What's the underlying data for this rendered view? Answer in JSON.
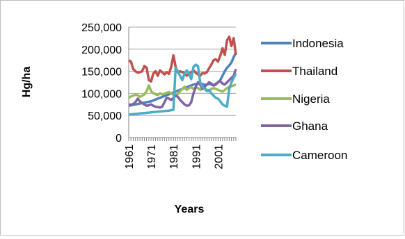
{
  "chart_data": {
    "type": "line",
    "title": "",
    "xlabel": "Years",
    "ylabel": "Hg/ha",
    "ylim": [
      0,
      250000
    ],
    "yticks": [
      0,
      50000,
      100000,
      150000,
      200000,
      250000
    ],
    "ytick_labels": [
      "0",
      "50,000",
      "100,000",
      "150,000",
      "200,000",
      "250,000"
    ],
    "xlim": [
      1961,
      2009
    ],
    "xtick_labels": [
      "1961",
      "1971",
      "1981",
      "1991",
      "2001"
    ],
    "grid": true,
    "legend_position": "right",
    "x": [
      1961,
      1962,
      1963,
      1964,
      1965,
      1966,
      1967,
      1968,
      1969,
      1970,
      1971,
      1972,
      1973,
      1974,
      1975,
      1976,
      1977,
      1978,
      1979,
      1980,
      1981,
      1982,
      1983,
      1984,
      1985,
      1986,
      1987,
      1988,
      1989,
      1990,
      1991,
      1992,
      1993,
      1994,
      1995,
      1996,
      1997,
      1998,
      1999,
      2000,
      2001,
      2002,
      2003,
      2004,
      2005,
      2006,
      2007,
      2008,
      2009
    ],
    "series": [
      {
        "name": "Indonesia",
        "color": "#4f81bd",
        "values": [
          72000,
          73000,
          74000,
          75000,
          76000,
          77000,
          78000,
          79000,
          80000,
          81000,
          82000,
          84000,
          86000,
          88000,
          90000,
          92000,
          94000,
          96000,
          98000,
          100000,
          102000,
          104000,
          106000,
          108000,
          110000,
          112000,
          114000,
          116000,
          118000,
          120000,
          121000,
          122000,
          123000,
          121000,
          119000,
          120000,
          122000,
          120000,
          118000,
          122000,
          125000,
          130000,
          140000,
          150000,
          158000,
          163000,
          170000,
          182000,
          192000
        ]
      },
      {
        "name": "Thailand",
        "color": "#c0504d",
        "values": [
          175000,
          172000,
          155000,
          150000,
          147000,
          148000,
          150000,
          162000,
          158000,
          130000,
          127000,
          145000,
          150000,
          140000,
          152000,
          148000,
          143000,
          148000,
          144000,
          160000,
          186000,
          160000,
          147000,
          150000,
          148000,
          146000,
          140000,
          145000,
          148000,
          152000,
          147000,
          143000,
          140000,
          146000,
          145000,
          148000,
          157000,
          165000,
          175000,
          177000,
          172000,
          185000,
          202000,
          187000,
          220000,
          228000,
          207000,
          225000,
          187000
        ]
      },
      {
        "name": "Nigeria",
        "color": "#9bbb59",
        "values": [
          90000,
          93000,
          95000,
          97000,
          96000,
          92000,
          95000,
          98000,
          105000,
          118000,
          105000,
          100000,
          98000,
          96000,
          100000,
          98000,
          99000,
          101000,
          103000,
          100000,
          97000,
          95000,
          98000,
          105000,
          110000,
          115000,
          108000,
          112000,
          114000,
          110000,
          113000,
          112000,
          108000,
          110000,
          112000,
          108000,
          105000,
          110000,
          112000,
          110000,
          108000,
          106000,
          104000,
          108000,
          112000,
          115000,
          116000,
          118000,
          120000
        ]
      },
      {
        "name": "Ghana",
        "color": "#8064a2",
        "values": [
          75000,
          74000,
          76000,
          80000,
          88000,
          82000,
          78000,
          75000,
          72000,
          73000,
          75000,
          72000,
          70000,
          69000,
          68000,
          70000,
          80000,
          90000,
          88000,
          85000,
          90000,
          95000,
          92000,
          85000,
          80000,
          75000,
          72000,
          73000,
          80000,
          100000,
          115000,
          125000,
          120000,
          110000,
          115000,
          120000,
          125000,
          122000,
          118000,
          120000,
          125000,
          128000,
          122000,
          120000,
          125000,
          130000,
          135000,
          140000,
          155000
        ]
      },
      {
        "name": "Cameroon",
        "color": "#4bacc6",
        "values": [
          52000,
          52500,
          53000,
          53500,
          54000,
          54500,
          55000,
          55500,
          56000,
          56500,
          57000,
          57500,
          58000,
          58500,
          59000,
          59500,
          60000,
          60500,
          61000,
          62000,
          63000,
          158000,
          150000,
          140000,
          130000,
          145000,
          152000,
          145000,
          132000,
          160000,
          165000,
          162000,
          125000,
          115000,
          110000,
          105000,
          108000,
          100000,
          95000,
          90000,
          88000,
          82000,
          75000,
          72000,
          70000,
          110000,
          125000,
          135000,
          145000
        ]
      }
    ]
  }
}
